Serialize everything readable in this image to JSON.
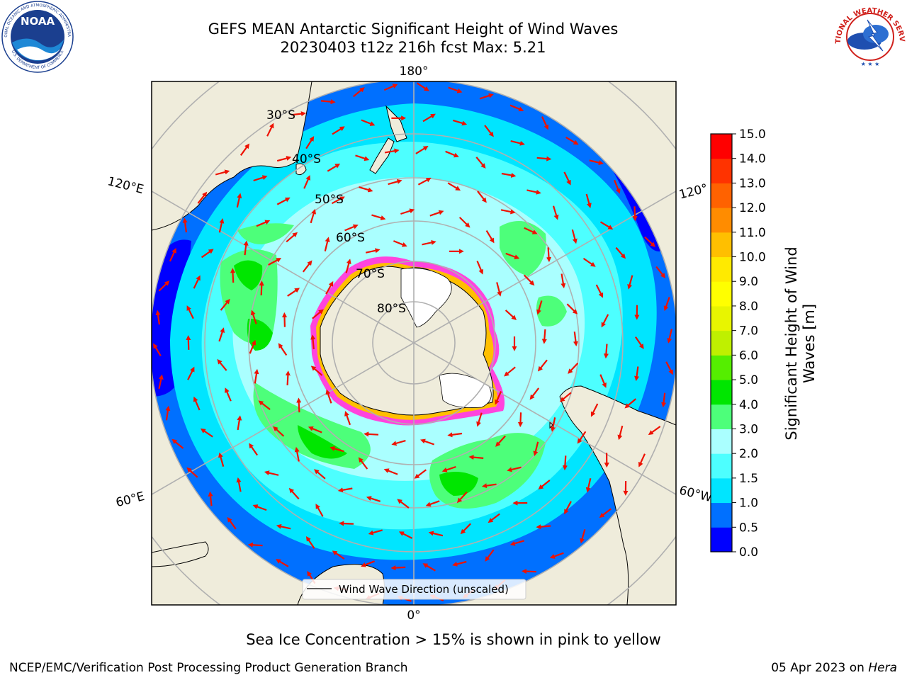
{
  "title": {
    "line1": "GEFS MEAN Antarctic Significant Height of Wind Waves",
    "line2": "20230403 t12z 216h fcst   Max: 5.21"
  },
  "logos": {
    "noaa_text": "NOAA",
    "noaa_ring": "NATIONAL OCEANIC AND ATMOSPHERIC ADMINISTRATION",
    "noaa_ring_bottom": "U.S. DEPARTMENT OF COMMERCE",
    "nws_ring": "NATIONAL WEATHER SERVICE"
  },
  "map": {
    "longitude_labels": {
      "top": "180°",
      "bottom": "0°",
      "left_upper": "120°E",
      "left_lower": "60°E",
      "right_upper": "120°",
      "right_lower": "60°W"
    },
    "latitude_labels": [
      "30°S",
      "40°S",
      "50°S",
      "60°S",
      "70°S",
      "80°S"
    ],
    "legend_label": "Wind Wave Direction (unscaled)",
    "colors": {
      "land": "#efecdb",
      "ice": "#ffffff",
      "grid": "#b0b0b0",
      "arrow": "#ee1100"
    }
  },
  "colorbar": {
    "label_line1": "Significant Height of Wind",
    "label_line2": "Waves [m]",
    "ticks": [
      "0.0",
      "0.5",
      "1.0",
      "1.5",
      "2.0",
      "3.0",
      "4.0",
      "5.0",
      "6.0",
      "7.0",
      "8.0",
      "9.0",
      "10.0",
      "11.0",
      "12.0",
      "13.0",
      "14.0",
      "15.0"
    ],
    "colors": [
      "#0000ff",
      "#0070ff",
      "#00e5ff",
      "#4dffff",
      "#aaffff",
      "#4dff7a",
      "#00e600",
      "#55ee00",
      "#bff000",
      "#e8f500",
      "#ffff00",
      "#ffea00",
      "#ffbf00",
      "#ff8c00",
      "#ff6200",
      "#ff3300",
      "#ff0000"
    ]
  },
  "caption": "Sea Ice Concentration > 15% is shown in pink to yellow",
  "footer": {
    "left": "NCEP/EMC/Verification Post Processing Product Generation Branch",
    "right_date": "05 Apr 2023 on ",
    "right_host": "Hera"
  }
}
